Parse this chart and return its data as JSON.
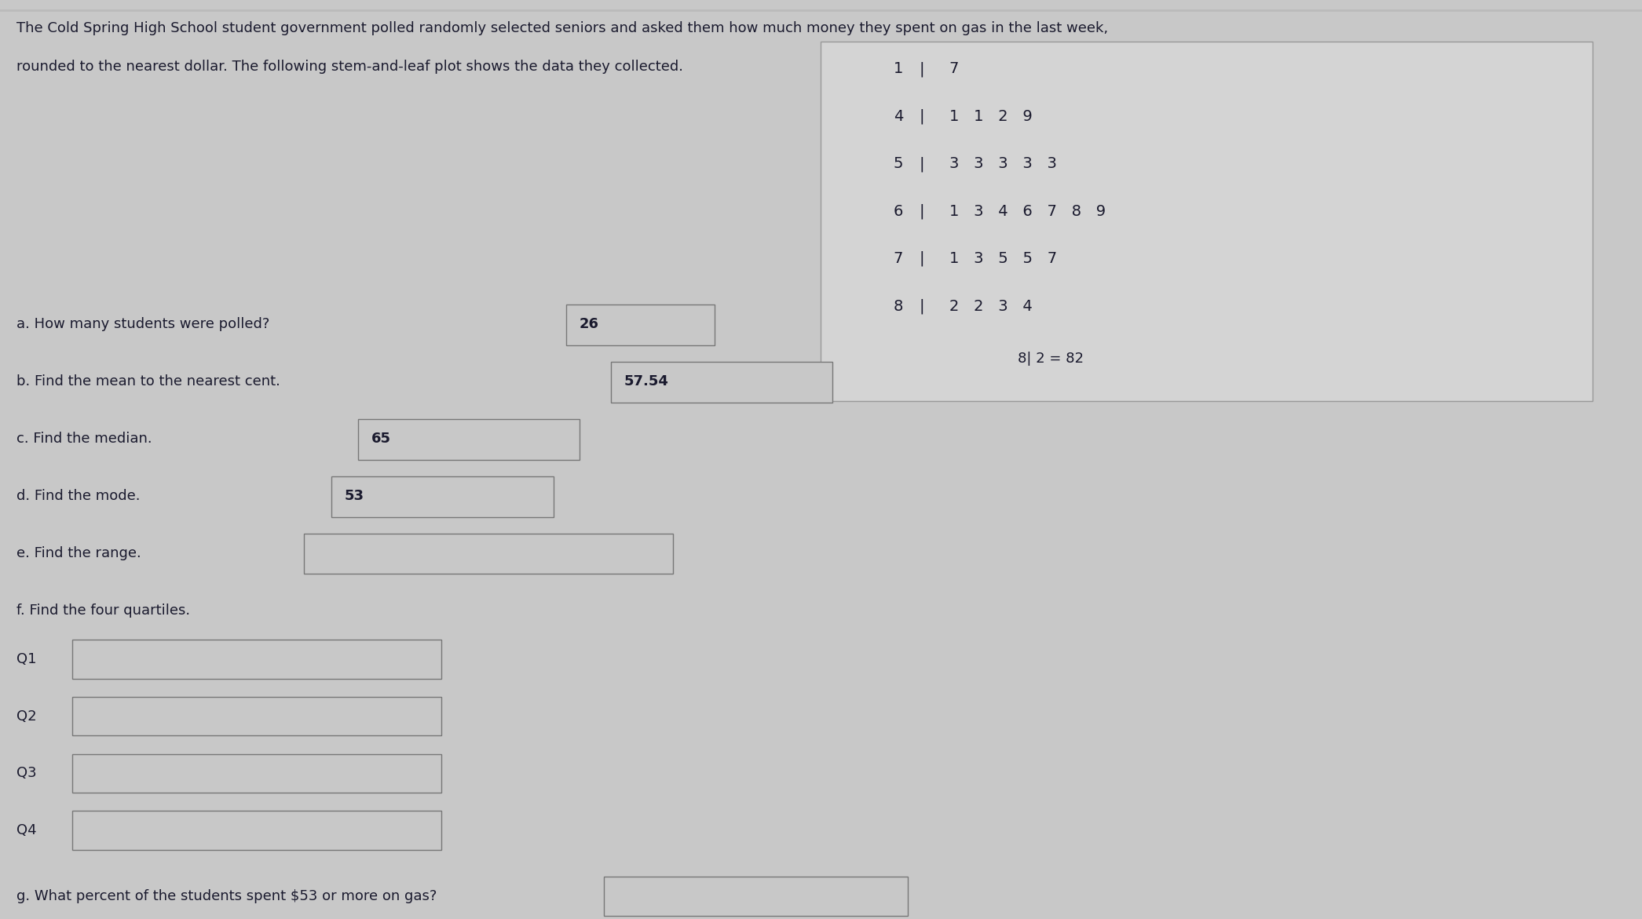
{
  "bg_color": "#c8c8c8",
  "header_text": "The Cold Spring High School student government polled randomly selected seniors and asked them how much money they spent on gas in the last week,",
  "header_text2": "rounded to the nearest dollar. The following stem-and-leaf plot shows the data they collected.",
  "stem_leaf": {
    "stems": [
      "1",
      "4",
      "5",
      "6",
      "7",
      "8"
    ],
    "leaves": [
      [
        "7"
      ],
      [
        "1",
        "1",
        "2",
        "9"
      ],
      [
        "3",
        "3",
        "3",
        "3",
        "3"
      ],
      [
        "1",
        "3",
        "4",
        "6",
        "7",
        "8",
        "9"
      ],
      [
        "1",
        "3",
        "5",
        "5",
        "7"
      ],
      [
        "2",
        "2",
        "3",
        "4"
      ]
    ],
    "key": "8| 2 = 82"
  },
  "quartiles": [
    "Q1",
    "Q2",
    "Q3",
    "Q4"
  ],
  "last_question": "g. What percent of the students spent $53 or more on gas?",
  "text_color": "#1a1a2e",
  "answer_color": "#1a1a2e",
  "box_edge_color": "#888888",
  "stem_bg": "#d4d4d4"
}
